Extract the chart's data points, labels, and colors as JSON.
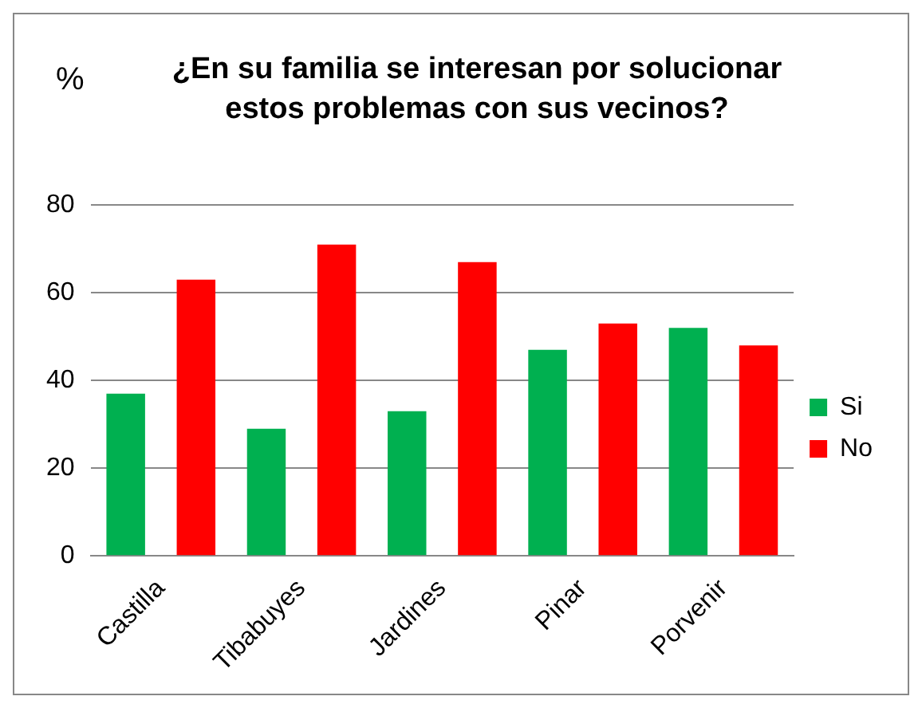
{
  "chart_data": {
    "type": "bar",
    "title": "¿En su familia se interesan por solucionar estos problemas con sus vecinos?",
    "ylabel": "%",
    "categories": [
      "Castilla",
      "Tibabuyes",
      "Jardines",
      "Pinar",
      "Porvenir"
    ],
    "series": [
      {
        "name": "Si",
        "color": "#00b050",
        "values": [
          37,
          29,
          33,
          47,
          52
        ]
      },
      {
        "name": "No",
        "color": "#ff0000",
        "values": [
          63,
          71,
          67,
          53,
          48
        ]
      }
    ],
    "ylim": [
      0,
      80
    ],
    "yticks": [
      0,
      20,
      40,
      60,
      80
    ],
    "grid": "y",
    "legend": "right"
  }
}
